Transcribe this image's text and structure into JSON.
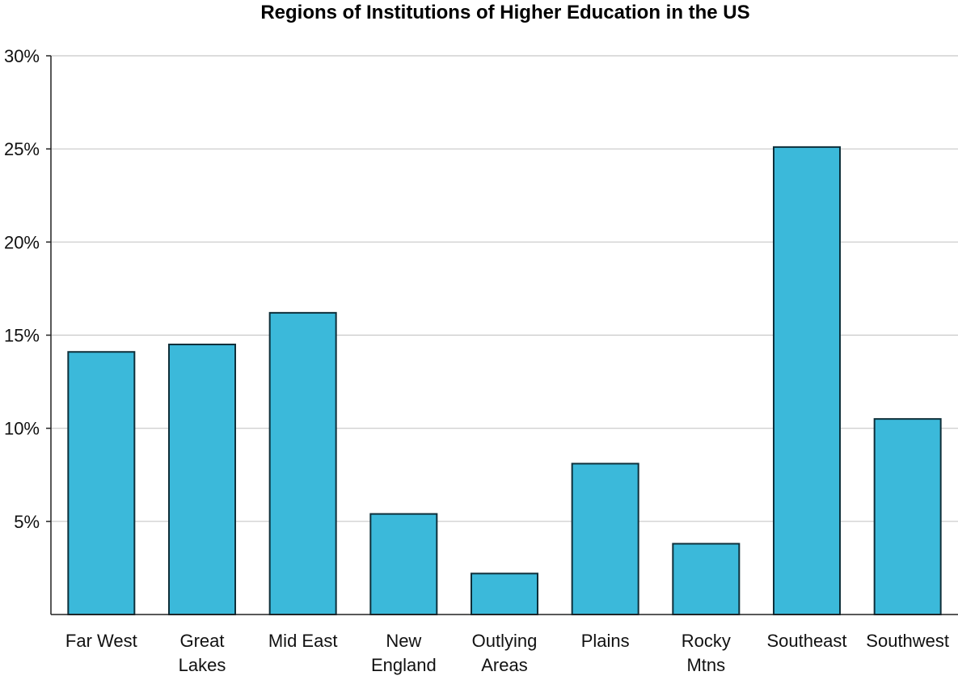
{
  "chart_data": {
    "type": "bar",
    "title": "Regions of Institutions of Higher Education in the US",
    "xlabel": "",
    "ylabel": "",
    "categories": [
      [
        "Far West"
      ],
      [
        "Great",
        "Lakes"
      ],
      [
        "Mid East"
      ],
      [
        "New",
        "England"
      ],
      [
        "Outlying",
        "Areas"
      ],
      [
        "Plains"
      ],
      [
        "Rocky",
        "Mtns"
      ],
      [
        "Southeast"
      ],
      [
        "Southwest"
      ]
    ],
    "values": [
      14.1,
      14.5,
      16.2,
      5.4,
      2.2,
      8.1,
      3.8,
      25.1,
      10.5
    ],
    "ylim": [
      0,
      30
    ],
    "yticks": [
      5,
      10,
      15,
      20,
      25,
      30
    ],
    "ytick_labels": [
      "5%",
      "10%",
      "15%",
      "20%",
      "25%",
      "30%"
    ],
    "grid": true,
    "colors": {
      "bar_fill": "#3bb9da",
      "bar_stroke": "#0e2f3a",
      "grid": "#c8c8c8",
      "axis": "#222222"
    }
  }
}
